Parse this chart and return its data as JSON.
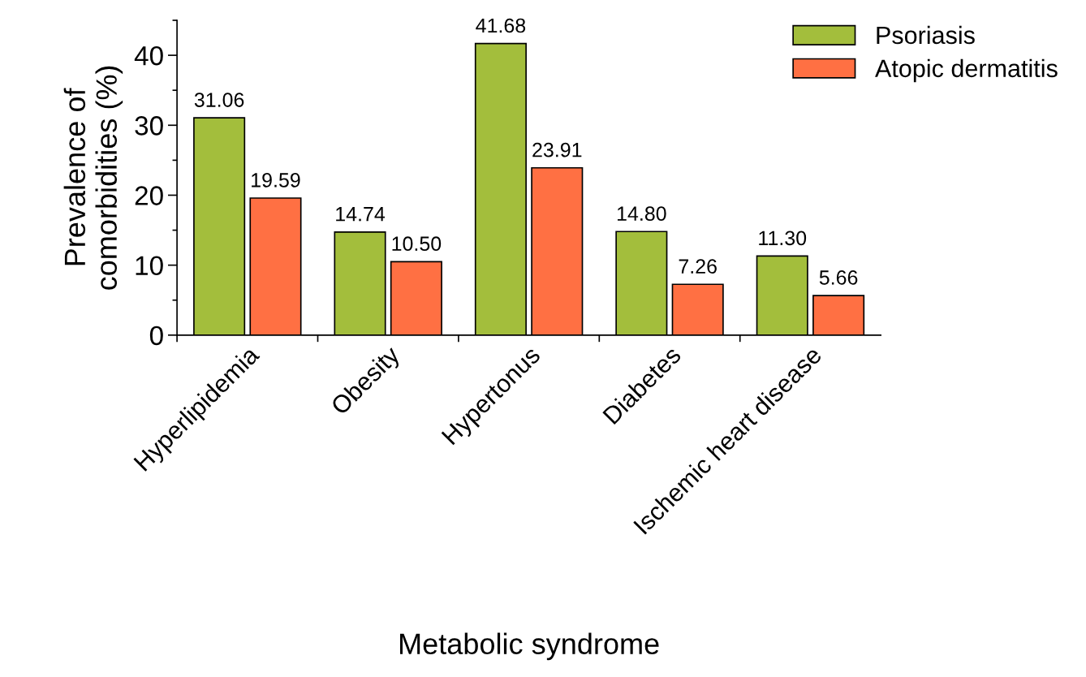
{
  "chart_data": {
    "type": "bar",
    "xlabel": "Metabolic syndrome",
    "ylabel": "Prevalence of\ncomorbidities (%)",
    "categories": [
      "Hyperlipidemia",
      "Obesity",
      "Hypertonus",
      "Diabetes",
      "Ischemic heart disease"
    ],
    "series": [
      {
        "name": "Psoriasis",
        "color": "#a3be3c",
        "values": [
          31.06,
          14.74,
          41.68,
          14.8,
          11.3
        ],
        "value_labels": [
          "31.06",
          "14.74",
          "41.68",
          "14.80",
          "11.30"
        ]
      },
      {
        "name": "Atopic dermatitis",
        "color": "#ff7043",
        "values": [
          19.59,
          10.5,
          23.91,
          7.26,
          5.66
        ],
        "value_labels": [
          "19.59",
          "10.50",
          "23.91",
          "7.26",
          "5.66"
        ]
      }
    ],
    "ylim": [
      0,
      45
    ],
    "yticks": [
      0,
      10,
      20,
      30,
      40
    ],
    "grid": false,
    "legend": "top right"
  }
}
